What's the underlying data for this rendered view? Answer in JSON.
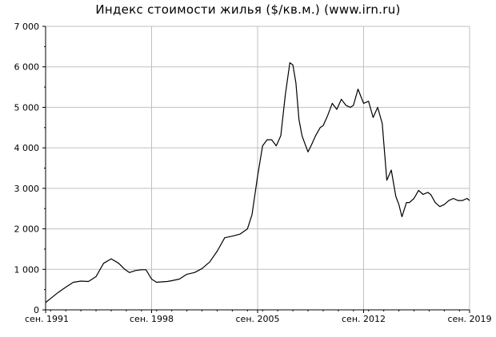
{
  "chart_data": {
    "type": "line",
    "title": "Индекс стоимости жилья ($/кв.м.) (www.irn.ru)",
    "xlabel": "",
    "ylabel": "",
    "x_ticks": [
      "сен. 1991",
      "сен. 1998",
      "сен. 2005",
      "сен. 2012",
      "сен. 2019"
    ],
    "y_ticks": [
      "0",
      "1 000",
      "2 000",
      "3 000",
      "4 000",
      "5 000",
      "6 000",
      "7 000"
    ],
    "ylim": [
      0,
      7000
    ],
    "xlim": [
      1991.67,
      2019.67
    ],
    "grid": true,
    "colors": {
      "line": "#000000",
      "grid": "#c0c0c0",
      "axis": "#000000"
    },
    "series": [
      {
        "x": [
          1991.67,
          1992.0,
          1992.5,
          1993.0,
          1993.5,
          1994.0,
          1994.5,
          1995.0,
          1995.5,
          1996.0,
          1996.5,
          1996.9,
          1997.2,
          1997.6,
          1998.0,
          1998.3,
          1998.67,
          1999.0,
          1999.3,
          1999.7,
          2000.0,
          2000.5,
          2001.0,
          2001.5,
          2002.0,
          2002.5,
          2003.0,
          2003.5,
          2004.0,
          2004.5,
          2005.0,
          2005.3,
          2005.67,
          2006.0,
          2006.3,
          2006.6,
          2006.9,
          2007.2,
          2007.5,
          2007.8,
          2008.0,
          2008.2,
          2008.4,
          2008.6,
          2008.8,
          2009.0,
          2009.2,
          2009.5,
          2009.8,
          2010.0,
          2010.3,
          2010.6,
          2010.9,
          2011.2,
          2011.5,
          2011.8,
          2012.0,
          2012.3,
          2012.67,
          2013.0,
          2013.3,
          2013.6,
          2013.9,
          2014.2,
          2014.5,
          2014.8,
          2015.0,
          2015.2,
          2015.5,
          2015.7,
          2016.0,
          2016.3,
          2016.6,
          2016.9,
          2017.1,
          2017.4,
          2017.7,
          2018.0,
          2018.3,
          2018.6,
          2018.9,
          2019.2,
          2019.5,
          2019.67
        ],
        "values": [
          180,
          280,
          430,
          560,
          680,
          710,
          700,
          820,
          1150,
          1260,
          1150,
          1000,
          920,
          970,
          990,
          990,
          760,
          680,
          690,
          700,
          720,
          760,
          880,
          920,
          1020,
          1180,
          1450,
          1780,
          1820,
          1870,
          2000,
          2350,
          3300,
          4050,
          4200,
          4200,
          4050,
          4300,
          5300,
          6100,
          6050,
          5600,
          4700,
          4300,
          4100,
          3900,
          4050,
          4300,
          4500,
          4550,
          4800,
          5100,
          4950,
          5200,
          5050,
          5000,
          5050,
          5450,
          5100,
          5150,
          4750,
          5000,
          4600,
          3200,
          3450,
          2800,
          2600,
          2300,
          2650,
          2650,
          2750,
          2950,
          2850,
          2900,
          2850,
          2650,
          2550,
          2600,
          2700,
          2750,
          2700,
          2700,
          2750,
          2700
        ]
      }
    ]
  }
}
